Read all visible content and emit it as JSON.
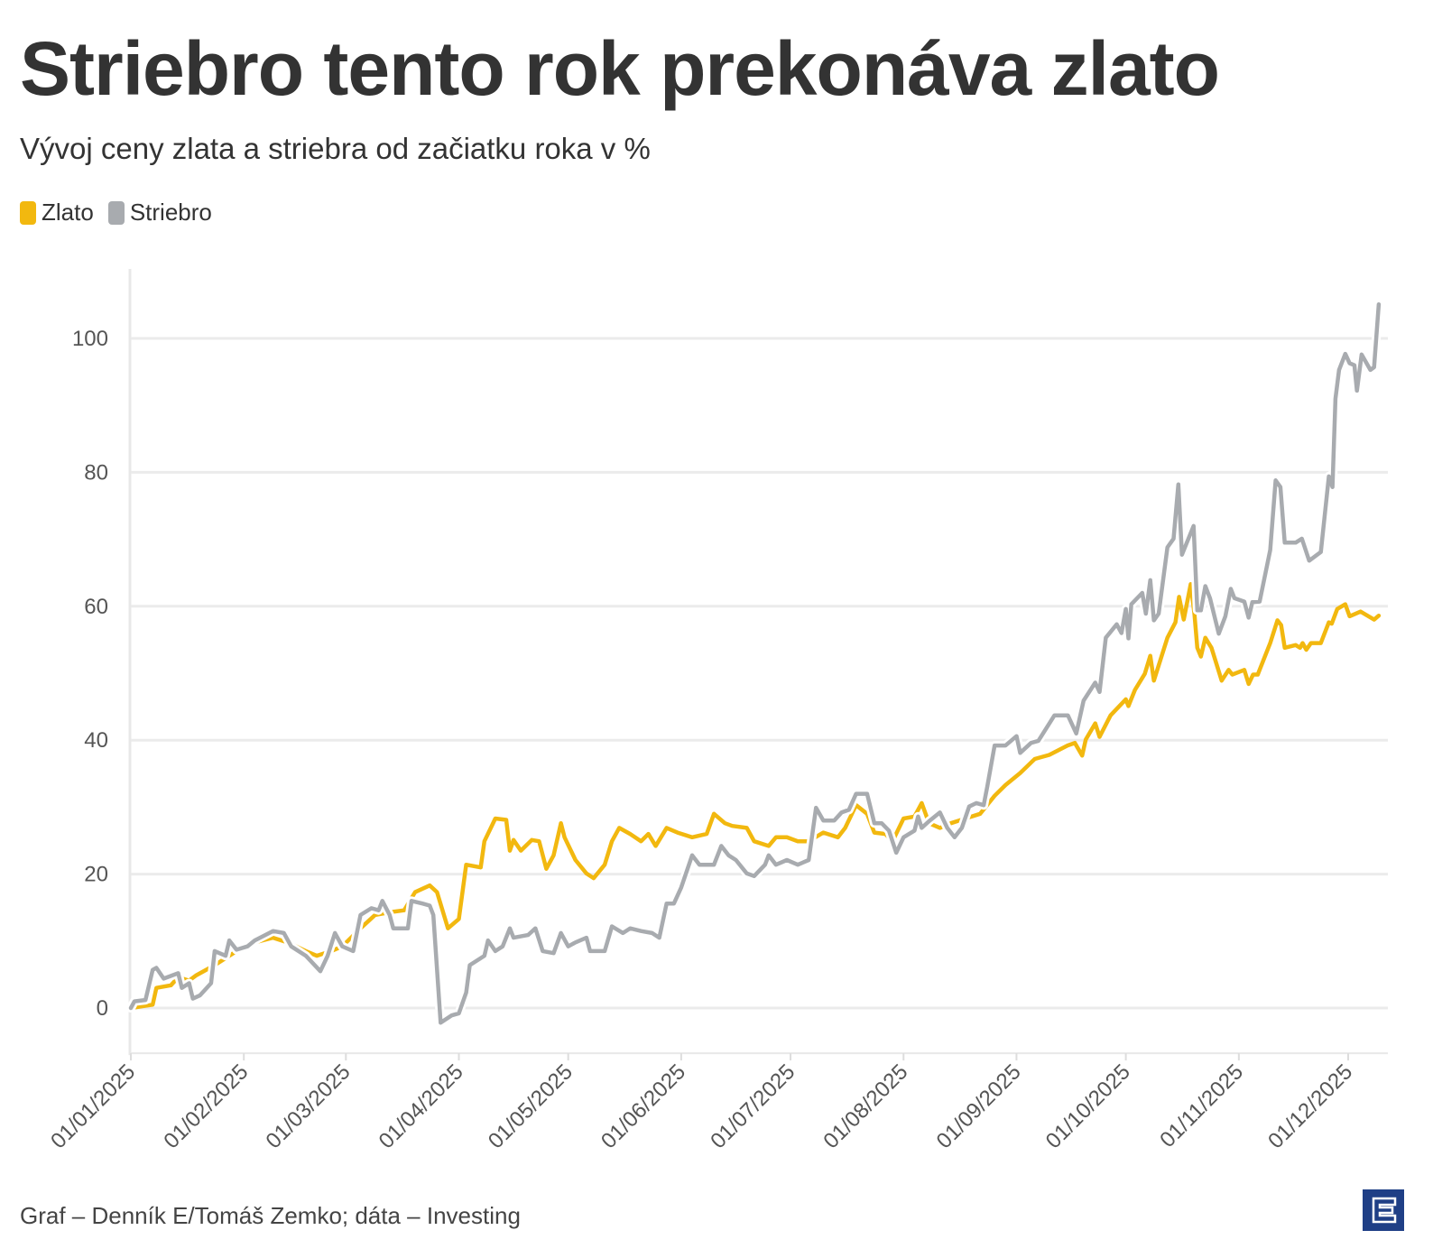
{
  "header": {
    "title": "Striebro tento rok prekonáva zlato",
    "subtitle": "Vývoj ceny zlata a striebra od začiatku roka v %"
  },
  "legend": [
    {
      "label": "Zlato",
      "color": "#f2b80f"
    },
    {
      "label": "Striebro",
      "color": "#a8abaf"
    }
  ],
  "footer": {
    "source": "Graf – Denník E/Tomáš Zemko; dáta – Investing",
    "logo_text": "E"
  },
  "chart_data": {
    "type": "line",
    "title": "Striebro tento rok prekonáva zlato",
    "subtitle": "Vývoj ceny zlata a striebra od začiatku roka v %",
    "xlabel": "",
    "ylabel": "",
    "x_unit": "days since 01/01/2025",
    "xlim": [
      0,
      343
    ],
    "ylim": [
      -5,
      110
    ],
    "grid": true,
    "legend_position": "top-left",
    "yticks": [
      0,
      20,
      40,
      60,
      80,
      100
    ],
    "xticks": [
      {
        "day": 0,
        "label": "01/01/2025"
      },
      {
        "day": 31,
        "label": "01/02/2025"
      },
      {
        "day": 59,
        "label": "01/03/2025"
      },
      {
        "day": 90,
        "label": "01/04/2025"
      },
      {
        "day": 120,
        "label": "01/05/2025"
      },
      {
        "day": 151,
        "label": "01/06/2025"
      },
      {
        "day": 181,
        "label": "01/07/2025"
      },
      {
        "day": 212,
        "label": "01/08/2025"
      },
      {
        "day": 243,
        "label": "01/09/2025"
      },
      {
        "day": 273,
        "label": "01/10/2025"
      },
      {
        "day": 304,
        "label": "01/11/2025"
      },
      {
        "day": 334,
        "label": "01/12/2025"
      }
    ],
    "series": [
      {
        "name": "Zlato",
        "color": "#f2b80f",
        "points": [
          [
            0,
            0
          ],
          [
            6,
            0.5
          ],
          [
            7,
            3
          ],
          [
            11,
            3.4
          ],
          [
            13,
            4.6
          ],
          [
            16,
            4.1
          ],
          [
            18,
            4.9
          ],
          [
            23,
            6.4
          ],
          [
            27,
            7.8
          ],
          [
            31,
            9.2
          ],
          [
            34,
            9.8
          ],
          [
            39,
            10.5
          ],
          [
            43,
            9.8
          ],
          [
            48,
            8.5
          ],
          [
            51,
            7.8
          ],
          [
            55,
            8.5
          ],
          [
            58,
            9.2
          ],
          [
            63,
            11.9
          ],
          [
            67,
            13.9
          ],
          [
            71,
            14.3
          ],
          [
            75,
            14.6
          ],
          [
            78,
            17.3
          ],
          [
            82,
            18.3
          ],
          [
            84,
            17.3
          ],
          [
            87,
            11.9
          ],
          [
            90,
            13.3
          ],
          [
            92,
            21.4
          ],
          [
            96,
            21
          ],
          [
            97,
            24.9
          ],
          [
            100,
            28.3
          ],
          [
            103,
            28.1
          ],
          [
            104,
            23.5
          ],
          [
            105,
            25.1
          ],
          [
            107,
            23.5
          ],
          [
            110,
            25.1
          ],
          [
            112,
            24.9
          ],
          [
            114,
            20.8
          ],
          [
            116,
            22.8
          ],
          [
            118,
            27.6
          ],
          [
            119,
            25.5
          ],
          [
            122,
            22.1
          ],
          [
            125,
            20.1
          ],
          [
            127,
            19.4
          ],
          [
            130,
            21.4
          ],
          [
            132,
            24.9
          ],
          [
            134,
            26.9
          ],
          [
            137,
            26
          ],
          [
            140,
            24.9
          ],
          [
            142,
            26
          ],
          [
            144,
            24.2
          ],
          [
            147,
            26.9
          ],
          [
            150,
            26.2
          ],
          [
            154,
            25.5
          ],
          [
            158,
            26
          ],
          [
            160,
            29
          ],
          [
            163,
            27.6
          ],
          [
            165,
            27.2
          ],
          [
            169,
            26.9
          ],
          [
            171,
            24.9
          ],
          [
            175,
            24.2
          ],
          [
            177,
            25.5
          ],
          [
            180,
            25.5
          ],
          [
            183,
            24.9
          ],
          [
            186,
            24.9
          ],
          [
            190,
            26.2
          ],
          [
            194,
            25.5
          ],
          [
            196,
            26.9
          ],
          [
            199,
            30.3
          ],
          [
            202,
            29
          ],
          [
            204,
            26.2
          ],
          [
            207,
            26
          ],
          [
            209,
            24.9
          ],
          [
            212,
            28.3
          ],
          [
            215,
            28.6
          ],
          [
            217,
            30.6
          ],
          [
            219,
            27.6
          ],
          [
            222,
            26.9
          ],
          [
            225,
            27.6
          ],
          [
            229,
            28.3
          ],
          [
            233,
            29
          ],
          [
            237,
            31.7
          ],
          [
            240,
            33.3
          ],
          [
            244,
            35.1
          ],
          [
            248,
            37.2
          ],
          [
            252,
            37.8
          ],
          [
            257,
            39.2
          ],
          [
            259,
            39.6
          ],
          [
            261,
            37.7
          ],
          [
            262,
            40.1
          ],
          [
            264.6,
            42.5
          ],
          [
            265.8,
            40.5
          ],
          [
            268.8,
            43.7
          ],
          [
            273,
            46.1
          ],
          [
            273.7,
            45.1
          ],
          [
            275.5,
            47.5
          ],
          [
            278.2,
            49.9
          ],
          [
            279.7,
            52.6
          ],
          [
            280.7,
            48.9
          ],
          [
            284.4,
            55.3
          ],
          [
            286.6,
            57.6
          ],
          [
            287.6,
            61.4
          ],
          [
            288.9,
            58
          ],
          [
            290.8,
            63.3
          ],
          [
            291.8,
            58.9
          ],
          [
            292.6,
            53.8
          ],
          [
            293.6,
            52.5
          ],
          [
            294.8,
            55.3
          ],
          [
            296.5,
            53.8
          ],
          [
            299.3,
            48.9
          ],
          [
            301.2,
            50.5
          ],
          [
            302.2,
            49.8
          ],
          [
            305.5,
            50.5
          ],
          [
            306.7,
            48.4
          ],
          [
            307.9,
            49.8
          ],
          [
            309.2,
            49.8
          ],
          [
            312.6,
            54.5
          ],
          [
            314.6,
            57.9
          ],
          [
            315.6,
            57.2
          ],
          [
            316.6,
            53.8
          ],
          [
            319.6,
            54.2
          ],
          [
            320.8,
            53.8
          ],
          [
            321.5,
            54.5
          ],
          [
            322.5,
            53.5
          ],
          [
            323.8,
            54.5
          ],
          [
            326.5,
            54.5
          ],
          [
            328.7,
            57.6
          ],
          [
            329.5,
            57.4
          ],
          [
            331,
            59.6
          ],
          [
            333.2,
            60.3
          ],
          [
            334.4,
            58.5
          ],
          [
            337.4,
            59.2
          ],
          [
            341.1,
            58
          ],
          [
            342.4,
            58.6
          ]
        ]
      },
      {
        "name": "Striebro",
        "color": "#a8abaf",
        "points": [
          [
            0,
            0
          ],
          [
            1,
            1
          ],
          [
            4,
            1.2
          ],
          [
            6,
            5.7
          ],
          [
            7,
            6
          ],
          [
            9,
            4.4
          ],
          [
            13,
            5.2
          ],
          [
            14,
            3
          ],
          [
            16,
            3.7
          ],
          [
            17,
            1.4
          ],
          [
            19,
            1.9
          ],
          [
            22,
            3.7
          ],
          [
            23,
            8.5
          ],
          [
            26,
            7.8
          ],
          [
            27,
            10.1
          ],
          [
            29,
            8.7
          ],
          [
            32,
            9.2
          ],
          [
            34,
            10.1
          ],
          [
            39,
            11.5
          ],
          [
            42,
            11.2
          ],
          [
            44,
            9.2
          ],
          [
            48,
            7.8
          ],
          [
            52,
            5.5
          ],
          [
            54,
            7.8
          ],
          [
            56,
            11.2
          ],
          [
            58,
            9.2
          ],
          [
            61,
            8.5
          ],
          [
            63,
            13.9
          ],
          [
            66,
            14.9
          ],
          [
            68,
            14.6
          ],
          [
            69,
            16
          ],
          [
            71,
            13.9
          ],
          [
            72,
            11.9
          ],
          [
            76,
            11.9
          ],
          [
            77,
            16
          ],
          [
            80,
            15.6
          ],
          [
            82,
            15.3
          ],
          [
            83,
            13.9
          ],
          [
            85,
            -2.2
          ],
          [
            88,
            -1.1
          ],
          [
            90,
            -0.8
          ],
          [
            92,
            2.3
          ],
          [
            93,
            6.4
          ],
          [
            97,
            7.8
          ],
          [
            98,
            10.1
          ],
          [
            100,
            8.5
          ],
          [
            102,
            9.2
          ],
          [
            104,
            11.9
          ],
          [
            105,
            10.5
          ],
          [
            109,
            10.9
          ],
          [
            111,
            11.9
          ],
          [
            113,
            8.5
          ],
          [
            116,
            8.2
          ],
          [
            118,
            11.2
          ],
          [
            120,
            9.2
          ],
          [
            122,
            9.8
          ],
          [
            125,
            10.5
          ],
          [
            126,
            8.5
          ],
          [
            130,
            8.5
          ],
          [
            132,
            12.2
          ],
          [
            135,
            11.2
          ],
          [
            137,
            11.9
          ],
          [
            140,
            11.5
          ],
          [
            143,
            11.2
          ],
          [
            145,
            10.5
          ],
          [
            147,
            15.6
          ],
          [
            149,
            15.6
          ],
          [
            151,
            18
          ],
          [
            154,
            22.8
          ],
          [
            156,
            21.4
          ],
          [
            160,
            21.4
          ],
          [
            162,
            24.2
          ],
          [
            164,
            22.8
          ],
          [
            166,
            22.1
          ],
          [
            169,
            20.1
          ],
          [
            171,
            19.7
          ],
          [
            174,
            21.4
          ],
          [
            175,
            22.8
          ],
          [
            177,
            21.4
          ],
          [
            180,
            22.1
          ],
          [
            183,
            21.4
          ],
          [
            186,
            22.1
          ],
          [
            188,
            29.9
          ],
          [
            190,
            28
          ],
          [
            193,
            28
          ],
          [
            195,
            29.2
          ],
          [
            197,
            29.6
          ],
          [
            199,
            32
          ],
          [
            202,
            32
          ],
          [
            204,
            27.6
          ],
          [
            206,
            27.6
          ],
          [
            208,
            26.5
          ],
          [
            210,
            23.2
          ],
          [
            212,
            25.5
          ],
          [
            215,
            26.5
          ],
          [
            216,
            28.6
          ],
          [
            217,
            26.9
          ],
          [
            219,
            27.9
          ],
          [
            222,
            29.2
          ],
          [
            224,
            26.9
          ],
          [
            226,
            25.5
          ],
          [
            228,
            26.9
          ],
          [
            230,
            30.1
          ],
          [
            232,
            30.6
          ],
          [
            234,
            30.3
          ],
          [
            235,
            33.1
          ],
          [
            237,
            39.2
          ],
          [
            240,
            39.2
          ],
          [
            243,
            40.6
          ],
          [
            244,
            38.1
          ],
          [
            247,
            39.6
          ],
          [
            249,
            39.9
          ],
          [
            253.4,
            43.7
          ],
          [
            257.1,
            43.7
          ],
          [
            259.4,
            41
          ],
          [
            261.4,
            45.9
          ],
          [
            264.6,
            48.6
          ],
          [
            265.8,
            47.2
          ],
          [
            267.5,
            55.3
          ],
          [
            270.5,
            57.3
          ],
          [
            271.8,
            56
          ],
          [
            273,
            59.6
          ],
          [
            273.7,
            55.2
          ],
          [
            274.5,
            60.3
          ],
          [
            277.5,
            62
          ],
          [
            278.5,
            58.9
          ],
          [
            279.7,
            63.9
          ],
          [
            280.7,
            57.9
          ],
          [
            282,
            58.9
          ],
          [
            284.4,
            68.8
          ],
          [
            286.1,
            70.1
          ],
          [
            287.4,
            78.2
          ],
          [
            288.4,
            67.7
          ],
          [
            291.6,
            72
          ],
          [
            292.6,
            59.4
          ],
          [
            293.6,
            59.4
          ],
          [
            294.8,
            63
          ],
          [
            296.1,
            61.2
          ],
          [
            298.5,
            55.9
          ],
          [
            300.3,
            58.5
          ],
          [
            301.8,
            62.6
          ],
          [
            302.8,
            61.2
          ],
          [
            305.5,
            60.7
          ],
          [
            306.7,
            58.3
          ],
          [
            307.7,
            60.6
          ],
          [
            309.7,
            60.7
          ],
          [
            312.6,
            68.4
          ],
          [
            314.1,
            78.8
          ],
          [
            315.4,
            77.8
          ],
          [
            316.6,
            69.5
          ],
          [
            319.6,
            69.5
          ],
          [
            321.3,
            70.1
          ],
          [
            323.3,
            66.8
          ],
          [
            326.5,
            68.1
          ],
          [
            328.7,
            79.4
          ],
          [
            329.7,
            77.8
          ],
          [
            330.5,
            91
          ],
          [
            331.5,
            95.3
          ],
          [
            333.2,
            97.7
          ],
          [
            334.4,
            96.3
          ],
          [
            335.7,
            96
          ],
          [
            336.4,
            92.2
          ],
          [
            337.7,
            97.6
          ],
          [
            340.1,
            95.3
          ],
          [
            341.1,
            95.7
          ],
          [
            342.4,
            105.1
          ]
        ]
      }
    ]
  }
}
